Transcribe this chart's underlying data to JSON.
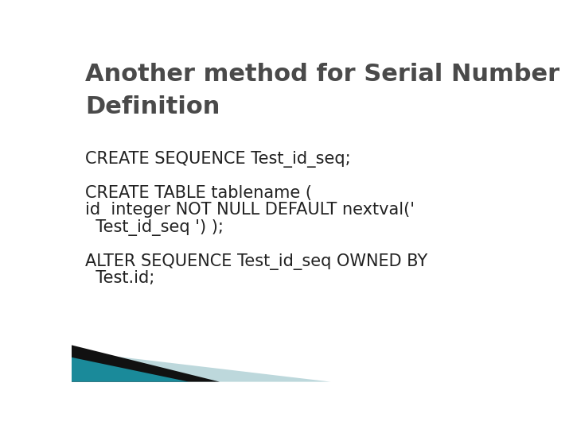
{
  "title_line1": "Another method for Serial Number",
  "title_line2": "Definition",
  "title_color": "#4a4a4a",
  "title_fontsize": 22,
  "body_lines": [
    "CREATE SEQUENCE Test_id_seq;",
    "",
    "CREATE TABLE tablename (",
    "id  integer NOT NULL DEFAULT nextval('",
    "  Test_id_seq ') );",
    "",
    "ALTER SEQUENCE Test_id_seq OWNED BY",
    "  Test.id;"
  ],
  "body_color": "#222222",
  "body_fontsize": 15,
  "background_color": "#ffffff",
  "teal_color": "#1a8a9a",
  "light_teal_color": "#bdd8dc",
  "black_color": "#111111"
}
